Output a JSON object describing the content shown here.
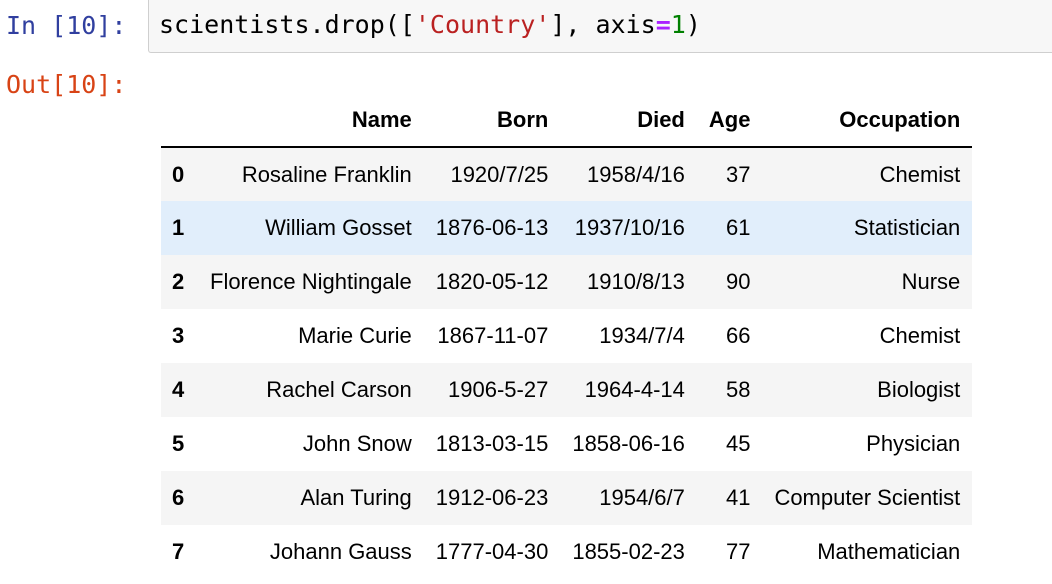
{
  "cell": {
    "in_prompt": "In [10]:",
    "out_prompt": "Out[10]:",
    "code": {
      "prefix": "scientists.drop([",
      "string_arg": "'Country'",
      "middle": "], axis",
      "operator": "=",
      "number": "1",
      "suffix": ")"
    }
  },
  "dataframe": {
    "columns": [
      "",
      "Name",
      "Born",
      "Died",
      "Age",
      "Occupation"
    ],
    "rows": [
      {
        "index": "0",
        "name": "Rosaline Franklin",
        "born": "1920/7/25",
        "died": "1958/4/16",
        "age": "37",
        "occupation": "Chemist"
      },
      {
        "index": "1",
        "name": "William Gosset",
        "born": "1876-06-13",
        "died": "1937/10/16",
        "age": "61",
        "occupation": "Statistician"
      },
      {
        "index": "2",
        "name": "Florence Nightingale",
        "born": "1820-05-12",
        "died": "1910/8/13",
        "age": "90",
        "occupation": "Nurse"
      },
      {
        "index": "3",
        "name": "Marie Curie",
        "born": "1867-11-07",
        "died": "1934/7/4",
        "age": "66",
        "occupation": "Chemist"
      },
      {
        "index": "4",
        "name": "Rachel Carson",
        "born": "1906-5-27",
        "died": "1964-4-14",
        "age": "58",
        "occupation": "Biologist"
      },
      {
        "index": "5",
        "name": "John Snow",
        "born": "1813-03-15",
        "died": "1858-06-16",
        "age": "45",
        "occupation": "Physician"
      },
      {
        "index": "6",
        "name": "Alan Turing",
        "born": "1912-06-23",
        "died": "1954/6/7",
        "age": "41",
        "occupation": "Computer Scientist"
      },
      {
        "index": "7",
        "name": "Johann Gauss",
        "born": "1777-04-30",
        "died": "1855-02-23",
        "age": "77",
        "occupation": "Mathematician"
      }
    ],
    "hovered_row": 1
  },
  "colors": {
    "in_prompt": "#303f9f",
    "out_prompt": "#d84315",
    "string": "#ba2121",
    "operator": "#aa22ff",
    "number": "#008000",
    "hover_row": "#e1eefb"
  }
}
